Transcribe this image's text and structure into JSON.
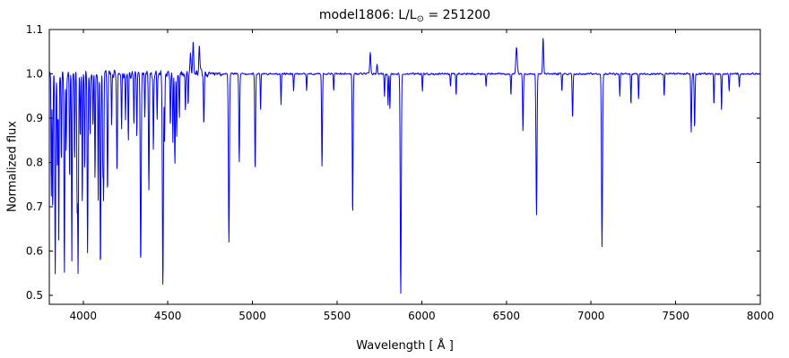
{
  "chart_data": {
    "type": "line",
    "title": "model1806: L/L⊙ = 251200",
    "title_parts": {
      "before": "model1806: L/L",
      "subscript": "⊙",
      "after": " = 251200"
    },
    "xlabel": "Wavelength [ Å ]",
    "ylabel": "Normalized flux",
    "xlim": [
      3800,
      8000
    ],
    "ylim": [
      0.48,
      1.1
    ],
    "xticks": [
      4000,
      4500,
      5000,
      5500,
      6000,
      6500,
      7000,
      7500,
      8000
    ],
    "xtick_labels": [
      "4000",
      "4500",
      "5000",
      "5500",
      "6000",
      "6500",
      "7000",
      "7500",
      "8000"
    ],
    "yticks": [
      0.5,
      0.6,
      0.7,
      0.8,
      0.9,
      1.0,
      1.1
    ],
    "ytick_labels": [
      "0.5",
      "0.6",
      "0.7",
      "0.8",
      "0.9",
      "1.0",
      "1.1"
    ],
    "line_color": "#0000ff",
    "axis_color": "#000000",
    "background_color": "#ffffff",
    "continuum_flux": 1.0,
    "legend": "none",
    "grid": false,
    "absorption_columns": [
      "wavelength_angstrom",
      "min_flux",
      "sigma_angstrom"
    ],
    "absorption_lines": [
      [
        3812,
        0.72,
        2
      ],
      [
        3820,
        0.68,
        2
      ],
      [
        3835,
        0.55,
        2.5
      ],
      [
        3848,
        0.78,
        2
      ],
      [
        3856,
        0.62,
        2
      ],
      [
        3871,
        0.8,
        2
      ],
      [
        3889,
        0.55,
        2.5
      ],
      [
        3900,
        0.82,
        2
      ],
      [
        3920,
        0.75,
        2
      ],
      [
        3933,
        0.57,
        2
      ],
      [
        3950,
        0.8,
        2
      ],
      [
        3964,
        0.72,
        2
      ],
      [
        3970,
        0.55,
        2.5
      ],
      [
        3983,
        0.85,
        2
      ],
      [
        3995,
        0.7,
        2
      ],
      [
        4009,
        0.78,
        2
      ],
      [
        4026,
        0.6,
        2.5
      ],
      [
        4041,
        0.85,
        2
      ],
      [
        4058,
        0.88,
        2
      ],
      [
        4070,
        0.76,
        2
      ],
      [
        4089,
        0.72,
        2
      ],
      [
        4102,
        0.55,
        2.5
      ],
      [
        4116,
        0.78,
        2
      ],
      [
        4121,
        0.72,
        2
      ],
      [
        4144,
        0.73,
        2.5
      ],
      [
        4168,
        0.88,
        2
      ],
      [
        4200,
        0.78,
        2.5
      ],
      [
        4227,
        0.88,
        2
      ],
      [
        4250,
        0.9,
        2
      ],
      [
        4267,
        0.84,
        2
      ],
      [
        4300,
        0.88,
        2
      ],
      [
        4317,
        0.85,
        2
      ],
      [
        4340,
        0.57,
        3
      ],
      [
        4364,
        0.9,
        2
      ],
      [
        4388,
        0.74,
        2.5
      ],
      [
        4415,
        0.82,
        2
      ],
      [
        4437,
        0.9,
        2
      ],
      [
        4471,
        0.52,
        3
      ],
      [
        4481,
        0.85,
        2
      ],
      [
        4515,
        0.88,
        2
      ],
      [
        4530,
        0.84,
        2
      ],
      [
        4542,
        0.8,
        2.5
      ],
      [
        4553,
        0.86,
        2
      ],
      [
        4568,
        0.9,
        2
      ],
      [
        4604,
        0.92,
        2
      ],
      [
        4620,
        0.93,
        2
      ],
      [
        4713,
        0.88,
        2.5
      ],
      [
        4861,
        0.62,
        3
      ],
      [
        4922,
        0.8,
        2.5
      ],
      [
        5016,
        0.78,
        2.5
      ],
      [
        5048,
        0.92,
        2
      ],
      [
        5169,
        0.93,
        2
      ],
      [
        5243,
        0.96,
        2
      ],
      [
        5320,
        0.96,
        2
      ],
      [
        5411,
        0.79,
        2.5
      ],
      [
        5480,
        0.96,
        2
      ],
      [
        5592,
        0.68,
        2.5
      ],
      [
        5780,
        0.95,
        2
      ],
      [
        5801,
        0.93,
        2
      ],
      [
        5812,
        0.92,
        2
      ],
      [
        5876,
        0.5,
        3
      ],
      [
        6004,
        0.96,
        2
      ],
      [
        6170,
        0.97,
        2
      ],
      [
        6203,
        0.95,
        2
      ],
      [
        6380,
        0.97,
        2
      ],
      [
        6527,
        0.95,
        2
      ],
      [
        6598,
        0.87,
        2.5
      ],
      [
        6678,
        0.68,
        3
      ],
      [
        6828,
        0.96,
        2
      ],
      [
        6891,
        0.9,
        2.5
      ],
      [
        7065,
        0.61,
        3
      ],
      [
        7170,
        0.95,
        2
      ],
      [
        7236,
        0.93,
        2
      ],
      [
        7281,
        0.94,
        2
      ],
      [
        7432,
        0.95,
        2
      ],
      [
        7592,
        0.87,
        2.5
      ],
      [
        7612,
        0.88,
        2.5
      ],
      [
        7726,
        0.93,
        2
      ],
      [
        7771,
        0.92,
        2
      ],
      [
        7816,
        0.96,
        2
      ],
      [
        7876,
        0.97,
        2
      ]
    ],
    "emission_columns": [
      "wavelength_angstrom",
      "peak_flux",
      "sigma_angstrom"
    ],
    "emission_lines": [
      [
        4634,
        1.05,
        3
      ],
      [
        4650,
        1.07,
        3
      ],
      [
        4686,
        1.06,
        3
      ],
      [
        5696,
        1.05,
        3
      ],
      [
        5736,
        1.02,
        2.5
      ],
      [
        6560,
        1.06,
        4
      ],
      [
        6717,
        1.08,
        3
      ]
    ],
    "noise": {
      "seed": 42,
      "blue_region": [
        3800,
        4700
      ],
      "blue_amplitude": 0.012,
      "red_amplitude": 0.003
    }
  }
}
